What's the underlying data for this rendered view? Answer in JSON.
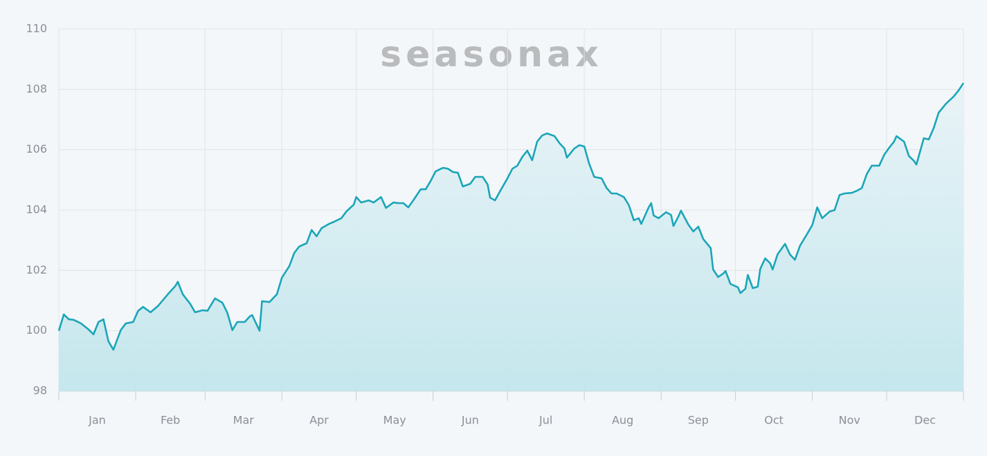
{
  "chart_data": {
    "type": "line",
    "watermark": "seasonax",
    "categories": [
      "Jan",
      "Feb",
      "Mar",
      "Apr",
      "May",
      "Jun",
      "Jul",
      "Aug",
      "Sep",
      "Oct",
      "Nov",
      "Dec"
    ],
    "xlim": [
      0,
      365
    ],
    "xticks": [
      0,
      31,
      59,
      90,
      120,
      151,
      181,
      212,
      243,
      273,
      304,
      334,
      365
    ],
    "ylim": [
      98,
      110
    ],
    "yticks": [
      98,
      100,
      102,
      104,
      106,
      108,
      110
    ],
    "grid": true,
    "series": [
      {
        "color": "#1aa5b8",
        "x": [
          0,
          2,
          4,
          6,
          9,
          12,
          14,
          16,
          18,
          20,
          22,
          25,
          27,
          30,
          32,
          34,
          37,
          40,
          44,
          47,
          48,
          50,
          53,
          55,
          58,
          60,
          63,
          66,
          68,
          70,
          72,
          75,
          77,
          78,
          81,
          82,
          85,
          88,
          90,
          93,
          95,
          97,
          100,
          102,
          104,
          106,
          109,
          111,
          114,
          116,
          119,
          120,
          122,
          125,
          127,
          130,
          132,
          135,
          137,
          139,
          141,
          143,
          146,
          148,
          150,
          152,
          155,
          157,
          159,
          161,
          163,
          166,
          168,
          171,
          173,
          174,
          176,
          178,
          181,
          183,
          185,
          187,
          189,
          191,
          193,
          195,
          197,
          200,
          202,
          204,
          205,
          208,
          210,
          212,
          214,
          216,
          219,
          221,
          223,
          225,
          228,
          230,
          232,
          234,
          235,
          238,
          239,
          240,
          242,
          245,
          247,
          248,
          250,
          251,
          254,
          256,
          258,
          260,
          263,
          264,
          266,
          268,
          269,
          271,
          274,
          275,
          277,
          278,
          280,
          282,
          283,
          285,
          287,
          288,
          290,
          293,
          295,
          297,
          299,
          302,
          304,
          306,
          308,
          311,
          313,
          315,
          317,
          320,
          322,
          324,
          326,
          328,
          331,
          333,
          335,
          337,
          338,
          341,
          343,
          345,
          346,
          349,
          351,
          353,
          355,
          358,
          361,
          363,
          365
        ],
        "values": [
          100.0,
          100.54,
          100.38,
          100.36,
          100.24,
          100.04,
          99.88,
          100.29,
          100.38,
          99.65,
          99.37,
          100.02,
          100.24,
          100.29,
          100.66,
          100.79,
          100.61,
          100.82,
          101.21,
          101.48,
          101.62,
          101.21,
          100.89,
          100.61,
          100.68,
          100.66,
          101.07,
          100.93,
          100.59,
          100.02,
          100.29,
          100.29,
          100.47,
          100.52,
          100.0,
          100.98,
          100.95,
          101.21,
          101.76,
          102.14,
          102.58,
          102.79,
          102.9,
          103.34,
          103.13,
          103.4,
          103.54,
          103.61,
          103.73,
          103.95,
          104.18,
          104.43,
          104.25,
          104.32,
          104.25,
          104.43,
          104.07,
          104.25,
          104.23,
          104.23,
          104.09,
          104.32,
          104.69,
          104.69,
          104.96,
          105.28,
          105.4,
          105.37,
          105.26,
          105.24,
          104.78,
          104.87,
          105.1,
          105.1,
          104.85,
          104.41,
          104.32,
          104.62,
          105.05,
          105.37,
          105.47,
          105.76,
          105.97,
          105.65,
          106.27,
          106.47,
          106.54,
          106.45,
          106.22,
          106.04,
          105.74,
          106.04,
          106.15,
          106.11,
          105.53,
          105.1,
          105.05,
          104.73,
          104.55,
          104.55,
          104.43,
          104.16,
          103.66,
          103.73,
          103.54,
          104.09,
          104.23,
          103.82,
          103.73,
          103.93,
          103.84,
          103.47,
          103.79,
          103.98,
          103.52,
          103.29,
          103.45,
          103.04,
          102.74,
          102.03,
          101.78,
          101.89,
          101.98,
          101.55,
          101.44,
          101.25,
          101.39,
          101.85,
          101.41,
          101.46,
          102.05,
          102.4,
          102.24,
          102.03,
          102.53,
          102.88,
          102.53,
          102.35,
          102.81,
          103.22,
          103.5,
          104.09,
          103.73,
          103.95,
          104.0,
          104.5,
          104.55,
          104.57,
          104.64,
          104.73,
          105.19,
          105.47,
          105.47,
          105.83,
          106.06,
          106.27,
          106.45,
          106.27,
          105.79,
          105.63,
          105.51,
          106.38,
          106.34,
          106.72,
          107.23,
          107.53,
          107.76,
          107.96,
          108.21
        ]
      }
    ]
  }
}
